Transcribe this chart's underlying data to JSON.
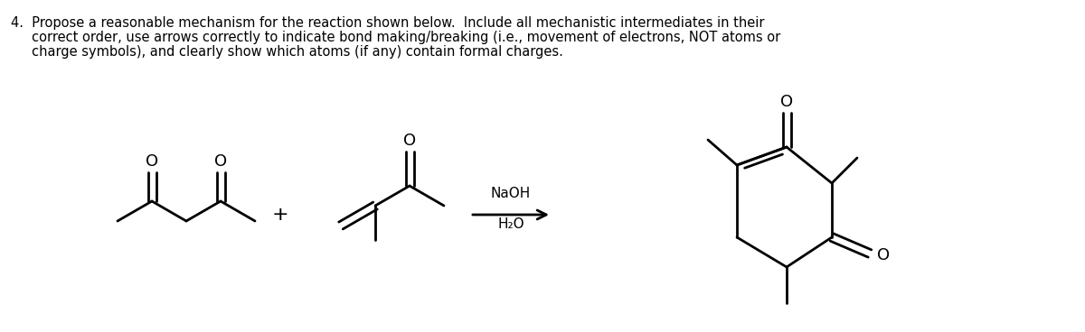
{
  "title_line1": "4.  Propose a reasonable mechanism for the reaction shown below.  Include all mechanistic intermediates in their",
  "title_line2": "     correct order, use arrows correctly to indicate bond making/breaking (i.e., movement of electrons, NOT atoms or",
  "title_line3": "     charge symbols), and clearly show which atoms (if any) contain formal charges.",
  "reagents_line1": "NaOH",
  "reagents_line2": "H₂O",
  "background": "#ffffff",
  "line_color": "#000000",
  "line_width": 2.0,
  "font_size_title": 10.5,
  "fig_width": 12.0,
  "fig_height": 3.68
}
